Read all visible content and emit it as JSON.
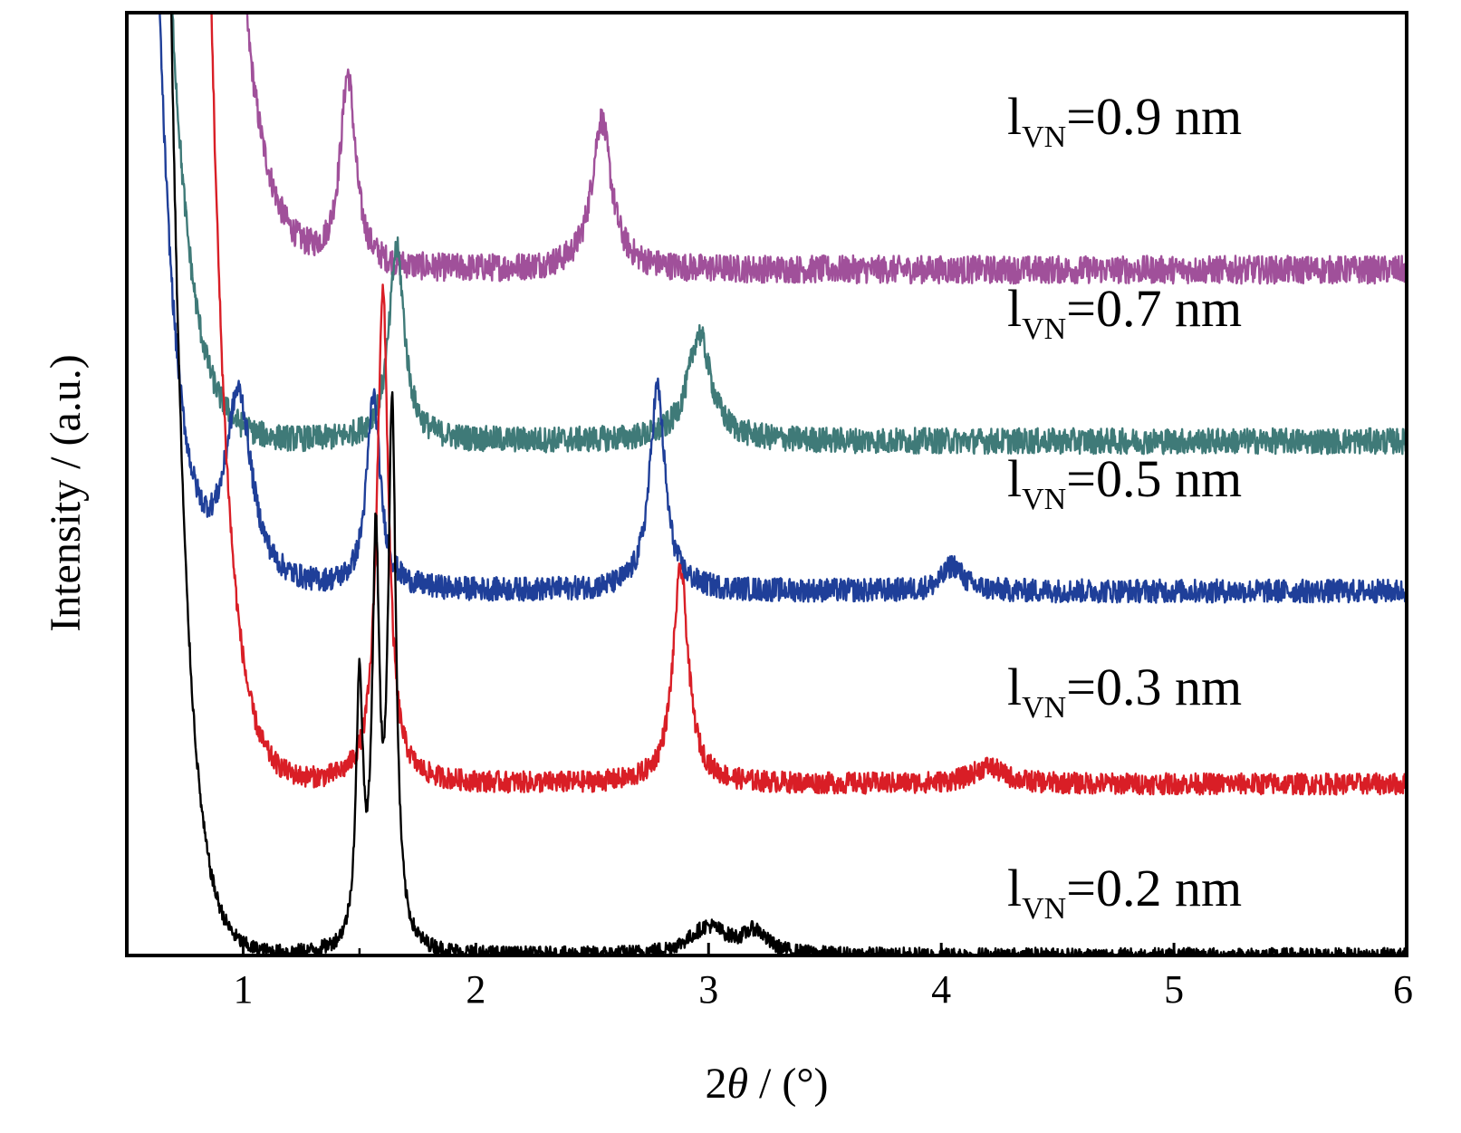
{
  "chart_data": {
    "type": "line",
    "title": "",
    "xlabel_prefix": "2",
    "xlabel_symbol": "θ",
    "xlabel_suffix": " / (°)",
    "ylabel": "Intensity / (a.u.)",
    "xlim": [
      0.5,
      6
    ],
    "xticks": [
      1,
      2,
      3,
      4,
      5,
      6
    ],
    "grid": false,
    "y_ticks_shown": false,
    "series": [
      {
        "label_main": "l",
        "label_sub": "VN",
        "label_rest": "=0.9 nm",
        "color": "#a0509a",
        "baseline": 32,
        "background": {
          "amp": 150,
          "decay": 0.1,
          "onset": 0.78
        },
        "peaks": [
          {
            "x": 1.45,
            "height": 9,
            "width": 0.04
          },
          {
            "x": 2.54,
            "height": 7,
            "width": 0.05
          }
        ],
        "noise": 1.3
      },
      {
        "label_main": "l",
        "label_sub": "VN",
        "label_rest": "=0.7 nm",
        "color": "#3f7a78",
        "baseline": 24,
        "background": {
          "amp": 220,
          "decay": 0.09,
          "onset": 0.5
        },
        "peaks": [
          {
            "x": 1.66,
            "height": 9,
            "width": 0.04
          },
          {
            "x": 2.96,
            "height": 5,
            "width": 0.06
          }
        ],
        "noise": 1.2
      },
      {
        "label_main": "l",
        "label_sub": "VN",
        "label_rest": "=0.5 nm",
        "color": "#1f3f99",
        "baseline": 17,
        "background": {
          "amp": 200,
          "decay": 0.08,
          "onset": 0.5
        },
        "peaks": [
          {
            "x": 0.98,
            "height": 9,
            "width": 0.07
          },
          {
            "x": 1.56,
            "height": 9,
            "width": 0.035
          },
          {
            "x": 2.78,
            "height": 9.5,
            "width": 0.04
          },
          {
            "x": 4.05,
            "height": 1.2,
            "width": 0.05
          }
        ],
        "noise": 1.1
      },
      {
        "label_main": "l",
        "label_sub": "VN",
        "label_rest": "=0.3 nm",
        "color": "#d91e26",
        "baseline": 8,
        "background": {
          "amp": 420,
          "decay": 0.075,
          "onset": 0.7
        },
        "peaks": [
          {
            "x": 1.6,
            "height": 23,
            "width": 0.03
          },
          {
            "x": 2.88,
            "height": 10,
            "width": 0.04
          },
          {
            "x": 4.2,
            "height": 0.8,
            "width": 0.08
          }
        ],
        "noise": 1.0
      },
      {
        "label_main": "l",
        "label_sub": "VN",
        "label_rest": "=0.2 nm",
        "color": "#000000",
        "baseline": 0,
        "background": {
          "amp": 900,
          "decay": 0.07,
          "onset": 0.5
        },
        "peaks": [
          {
            "x": 1.5,
            "height": 12,
            "width": 0.018
          },
          {
            "x": 1.57,
            "height": 18,
            "width": 0.018
          },
          {
            "x": 1.64,
            "height": 25,
            "width": 0.02
          },
          {
            "x": 3.0,
            "height": 1.3,
            "width": 0.1
          },
          {
            "x": 3.2,
            "height": 1.0,
            "width": 0.06
          }
        ],
        "noise": 0.7
      }
    ]
  }
}
